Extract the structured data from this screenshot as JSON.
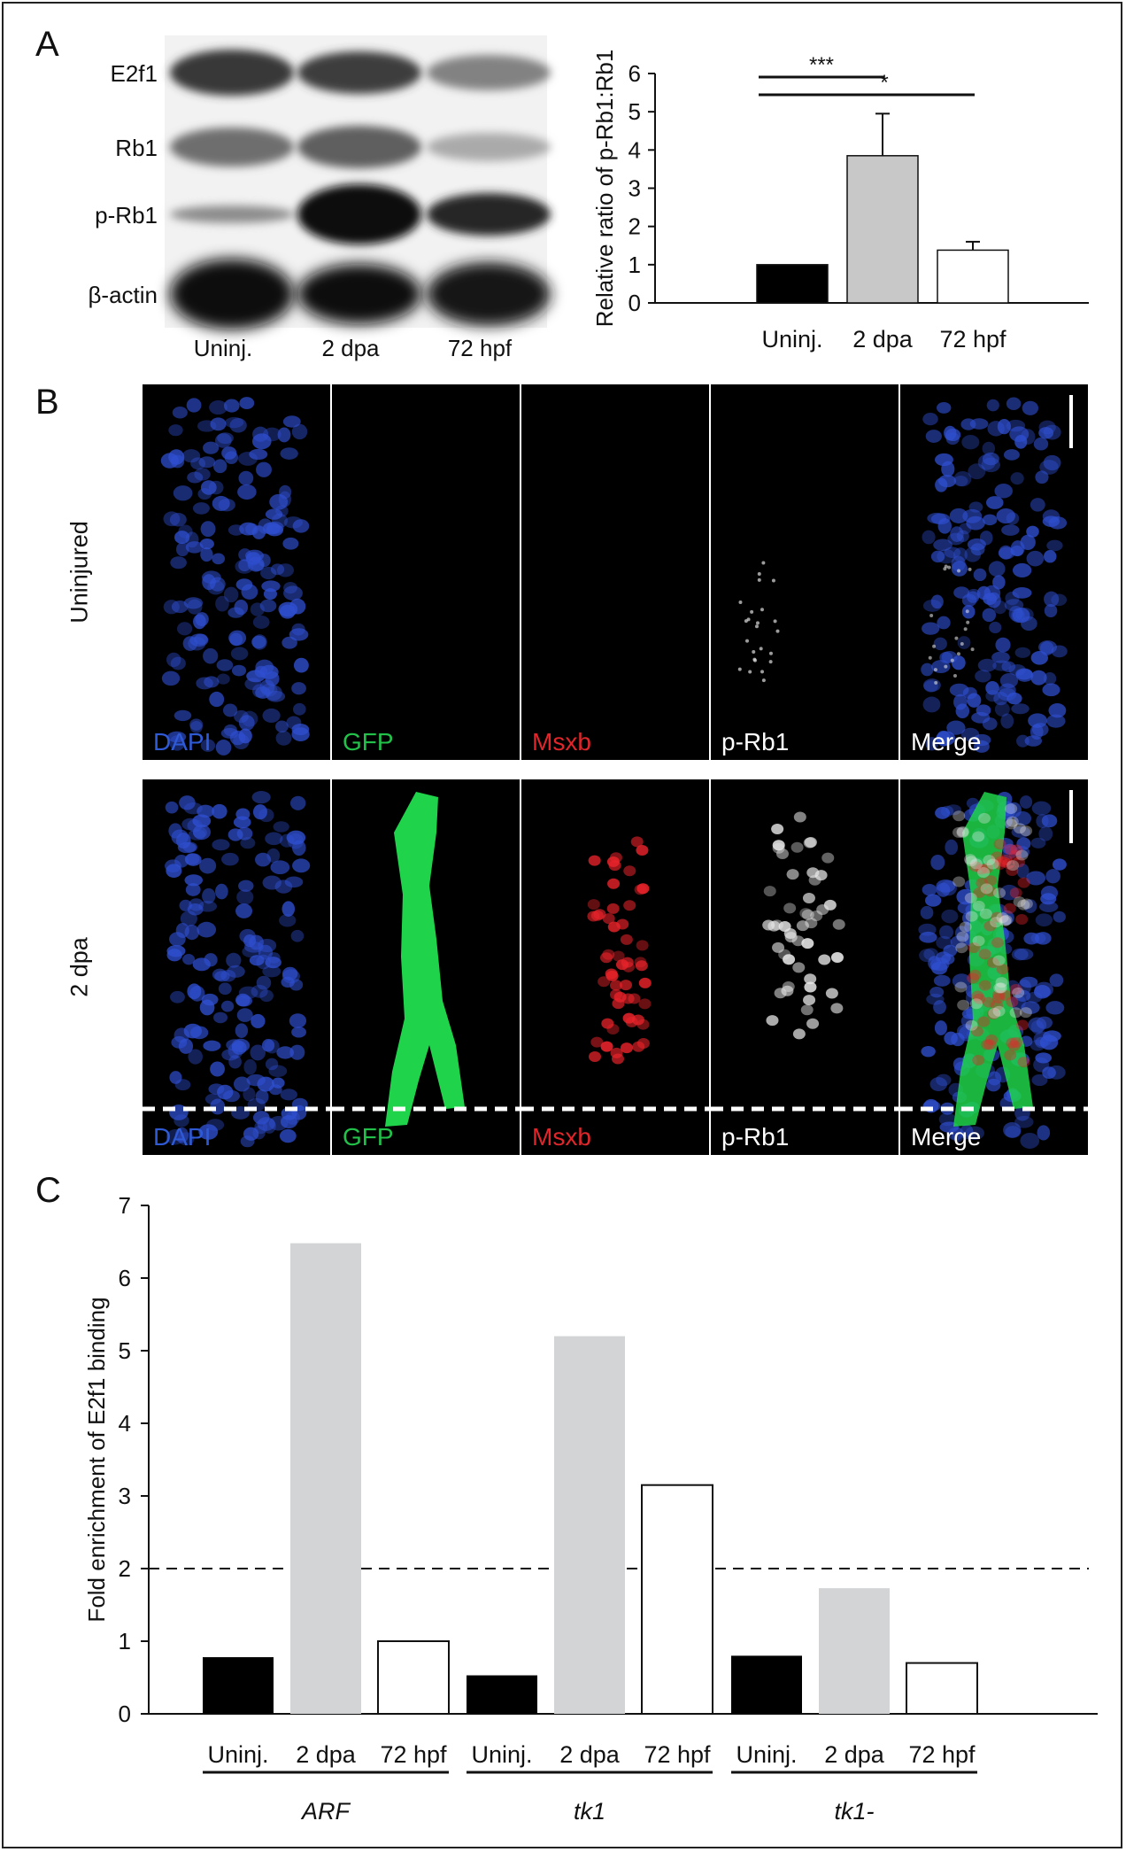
{
  "panels": {
    "a": "A",
    "b": "B",
    "c": "C"
  },
  "western_blot": {
    "rows": [
      "E2f1",
      "Rb1",
      "p-Rb1",
      "β-actin"
    ],
    "lanes": [
      "Uninj.",
      "2 dpa",
      "72 hpf"
    ]
  },
  "chart_a": {
    "type": "bar",
    "ylabel": "Relative ratio of p-Rb1:Rb1",
    "ylim": [
      0,
      6
    ],
    "yticks": [
      "0",
      "1",
      "2",
      "3",
      "4",
      "5",
      "6"
    ],
    "categories": [
      "Uninj.",
      "2 dpa",
      "72 hpf"
    ],
    "values": [
      1.0,
      3.85,
      1.38
    ],
    "errors": [
      0,
      1.1,
      0.22
    ],
    "colors": [
      "#000000",
      "#c8c8c8",
      "#ffffff"
    ],
    "significance": [
      {
        "label": "***",
        "from": 0,
        "to": 1
      },
      {
        "label": "*",
        "from": 0,
        "to": 2
      }
    ]
  },
  "microscopy": {
    "rows": [
      {
        "label": "Uninjured",
        "channels": [
          "DAPI",
          "GFP",
          "Msxb",
          "p-Rb1",
          "Merge"
        ]
      },
      {
        "label": "2 dpa",
        "channels": [
          "DAPI",
          "GFP",
          "Msxb",
          "p-Rb1",
          "Merge"
        ]
      }
    ],
    "channel_colors": [
      "#2f5ad6",
      "#22c24a",
      "#e0262a",
      "#ffffff",
      "#ffffff"
    ]
  },
  "chart_c": {
    "type": "bar",
    "ylabel": "Fold enrichment of E2f1 binding",
    "ylim": [
      0,
      7
    ],
    "yticks": [
      "0",
      "1",
      "2",
      "3",
      "4",
      "5",
      "6",
      "7"
    ],
    "threshold": 2,
    "groups": [
      {
        "name": "ARF",
        "categories": [
          "Uninj.",
          "2 dpa",
          "72 hpf"
        ],
        "values": [
          0.78,
          6.48,
          1.0
        ]
      },
      {
        "name": "tk1",
        "categories": [
          "Uninj.",
          "2 dpa",
          "72 hpf"
        ],
        "values": [
          0.53,
          5.2,
          3.15
        ]
      },
      {
        "name": "tk1-",
        "categories": [
          "Uninj.",
          "2 dpa",
          "72 hpf"
        ],
        "values": [
          0.8,
          1.73,
          0.7
        ]
      }
    ],
    "colors": [
      "#000000",
      "#d3d4d6",
      "#ffffff"
    ]
  }
}
